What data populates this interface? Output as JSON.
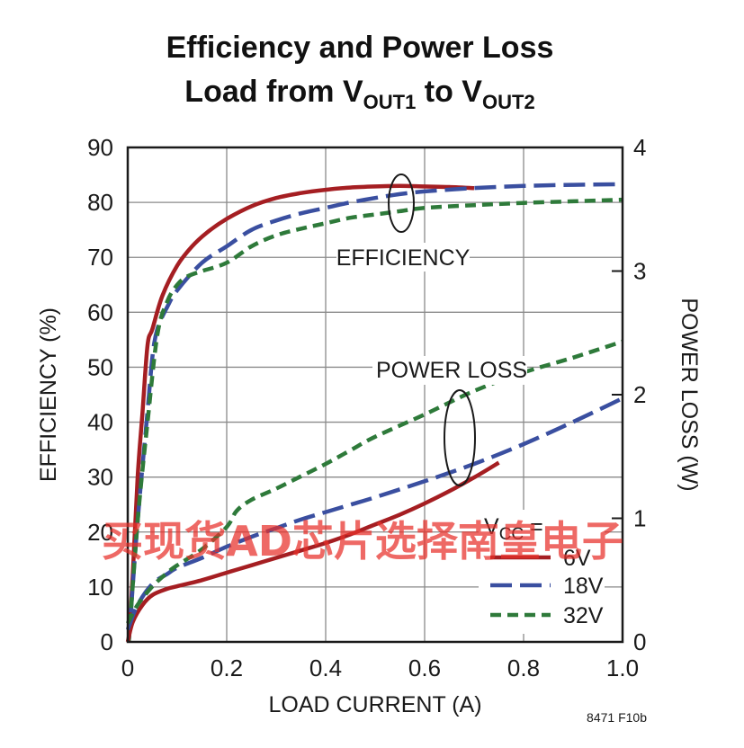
{
  "chart_data": {
    "type": "line",
    "title_line1": "Efficiency and Power Loss",
    "title_line2_main": "Load from V",
    "title_line2_sub1": "OUT1",
    "title_line2_mid": " to V",
    "title_line2_sub2": "OUT2",
    "xlabel": "LOAD CURRENT (A)",
    "ylabel": "EFFICIENCY (%)",
    "y2label": "POWER LOSS (W)",
    "xlim": [
      0,
      1.0
    ],
    "ylim": [
      0,
      90
    ],
    "y2lim": [
      0,
      4
    ],
    "x_ticks": [
      "0",
      "0.2",
      "0.4",
      "0.6",
      "0.8",
      "1.0"
    ],
    "y_ticks": [
      "0",
      "10",
      "20",
      "30",
      "40",
      "50",
      "60",
      "70",
      "80",
      "90"
    ],
    "y2_ticks": [
      "0",
      "1",
      "2",
      "3",
      "4"
    ],
    "grid": true,
    "annotations": {
      "efficiency": "EFFICIENCY",
      "power_loss": "POWER LOSS"
    },
    "legend": {
      "title_main": "V",
      "title_sub": "CC",
      "title_suffix": " =",
      "position": "bottom-right",
      "entries": [
        "6V",
        "18V",
        "32V"
      ]
    },
    "series": [
      {
        "name": "6V",
        "kind": "efficiency",
        "axis": "left",
        "color": "#a51e22",
        "dash": "solid",
        "x": [
          0.002,
          0.01,
          0.02,
          0.03,
          0.04,
          0.05,
          0.07,
          0.1,
          0.13,
          0.16,
          0.2,
          0.25,
          0.3,
          0.35,
          0.4,
          0.45,
          0.5,
          0.55,
          0.6,
          0.65,
          0.7
        ],
        "y": [
          0,
          12,
          30,
          42,
          54,
          57,
          63,
          68.5,
          72,
          74.5,
          77,
          79.3,
          80.8,
          81.7,
          82.3,
          82.7,
          82.9,
          83,
          82.9,
          82.8,
          82.6
        ]
      },
      {
        "name": "18V",
        "kind": "efficiency",
        "axis": "left",
        "color": "#3a4fa0",
        "dash": "long",
        "x": [
          0.002,
          0.02,
          0.04,
          0.05,
          0.06,
          0.08,
          0.1,
          0.15,
          0.2,
          0.25,
          0.3,
          0.35,
          0.4,
          0.45,
          0.5,
          0.55,
          0.6,
          0.7,
          0.8,
          0.9,
          1.0
        ],
        "y": [
          0,
          22,
          42,
          52,
          57,
          61,
          64,
          69,
          72,
          75,
          76.7,
          78,
          79,
          80,
          80.8,
          81.5,
          82,
          82.6,
          83,
          83.2,
          83.3
        ]
      },
      {
        "name": "32V",
        "kind": "efficiency",
        "axis": "left",
        "color": "#2e7a3a",
        "dash": "short",
        "x": [
          0.002,
          0.02,
          0.04,
          0.06,
          0.08,
          0.1,
          0.12,
          0.15,
          0.2,
          0.25,
          0.3,
          0.35,
          0.4,
          0.45,
          0.5,
          0.55,
          0.6,
          0.7,
          0.8,
          0.9,
          1.0
        ],
        "y": [
          0,
          22,
          40,
          56,
          62,
          65,
          66.5,
          67.5,
          69,
          72,
          74,
          75.2,
          76.2,
          77.2,
          77.8,
          78.4,
          79,
          79.5,
          79.9,
          80.2,
          80.5
        ]
      },
      {
        "name": "6V",
        "kind": "power_loss",
        "axis": "right",
        "color": "#a51e22",
        "dash": "solid",
        "x": [
          0,
          0.01,
          0.03,
          0.05,
          0.08,
          0.1,
          0.15,
          0.2,
          0.25,
          0.3,
          0.35,
          0.4,
          0.45,
          0.5,
          0.55,
          0.6,
          0.65,
          0.7,
          0.75
        ],
        "y": [
          0,
          0.16,
          0.3,
          0.38,
          0.43,
          0.45,
          0.5,
          0.56,
          0.62,
          0.68,
          0.74,
          0.8,
          0.87,
          0.95,
          1.03,
          1.12,
          1.22,
          1.33,
          1.45
        ]
      },
      {
        "name": "18V",
        "kind": "power_loss",
        "axis": "right",
        "color": "#3a4fa0",
        "dash": "long",
        "x": [
          0,
          0.02,
          0.05,
          0.08,
          0.1,
          0.15,
          0.2,
          0.25,
          0.3,
          0.35,
          0.4,
          0.45,
          0.5,
          0.6,
          0.7,
          0.8,
          0.9,
          1.0
        ],
        "y": [
          0.1,
          0.3,
          0.47,
          0.55,
          0.6,
          0.68,
          0.77,
          0.85,
          0.92,
          0.99,
          1.05,
          1.11,
          1.17,
          1.3,
          1.44,
          1.6,
          1.78,
          1.97
        ]
      },
      {
        "name": "32V",
        "kind": "power_loss",
        "axis": "right",
        "color": "#2e7a3a",
        "dash": "short",
        "x": [
          0,
          0.02,
          0.05,
          0.08,
          0.1,
          0.15,
          0.2,
          0.22,
          0.25,
          0.3,
          0.35,
          0.4,
          0.45,
          0.5,
          0.6,
          0.7,
          0.8,
          0.9,
          1.0
        ],
        "y": [
          0.15,
          0.3,
          0.45,
          0.56,
          0.62,
          0.75,
          0.93,
          1.06,
          1.15,
          1.24,
          1.34,
          1.44,
          1.55,
          1.66,
          1.84,
          2.03,
          2.18,
          2.3,
          2.43
        ]
      }
    ]
  },
  "figure_code": "8471 F10b",
  "watermark": "买现货AD芯片选择南皇电子"
}
